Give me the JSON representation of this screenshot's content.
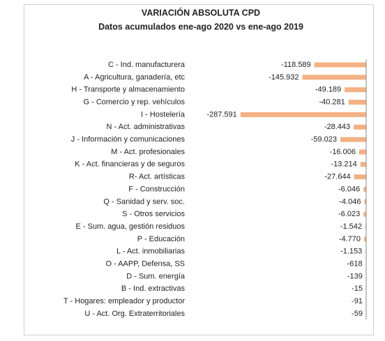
{
  "chart_data": {
    "type": "bar",
    "orientation": "horizontal",
    "title": "VARIACIÓN ABSOLUTA CPD",
    "subtitle": "Datos acumulados ene-ago 2020 vs ene-ago 2019",
    "categories": [
      "C - Ind. manufacturera",
      "A - Agricultura, ganadería, etc",
      "H - Transporte y almacenamiento",
      "G - Comercio y rep. vehículos",
      "I - Hostelería",
      "N - Act. administrativas",
      "J - Información y comunicaciones",
      "M - Act. profesionales",
      "K - Act. financieras y de seguros",
      "R- Act. artísticas",
      "F - Construcción",
      "Q - Sanidad y serv. soc.",
      "S - Otros servicios",
      "E - Sum. agua, gestión residuos",
      "P - Educación",
      "L - Act. inmobiliarias",
      "O - AAPP, Defensa, SS",
      "D - Sum. energía",
      "B - Ind. extractivas",
      "T - Hogares: empleador y productor",
      "U - Act. Org. Extraterritoriales"
    ],
    "values": [
      -118589,
      -145932,
      -49189,
      -40281,
      -287591,
      -28443,
      -59023,
      -16006,
      -13214,
      -27644,
      -6046,
      -4046,
      -6023,
      -1542,
      -4770,
      -1153,
      -618,
      -139,
      -15,
      -91,
      -59
    ],
    "value_labels": [
      "-118.589",
      "-145.932",
      "-49.189",
      "-40.281",
      "-287.591",
      "-28.443",
      "-59.023",
      "-16.006",
      "-13.214",
      "-27.644",
      "-6.046",
      "-4.046",
      "-6.023",
      "-1.542",
      "-4.770",
      "-1.153",
      "-618",
      "-139",
      "-15",
      "-91",
      "-59"
    ],
    "color": "#f4b183",
    "xlim": [
      -300000,
      0
    ]
  }
}
